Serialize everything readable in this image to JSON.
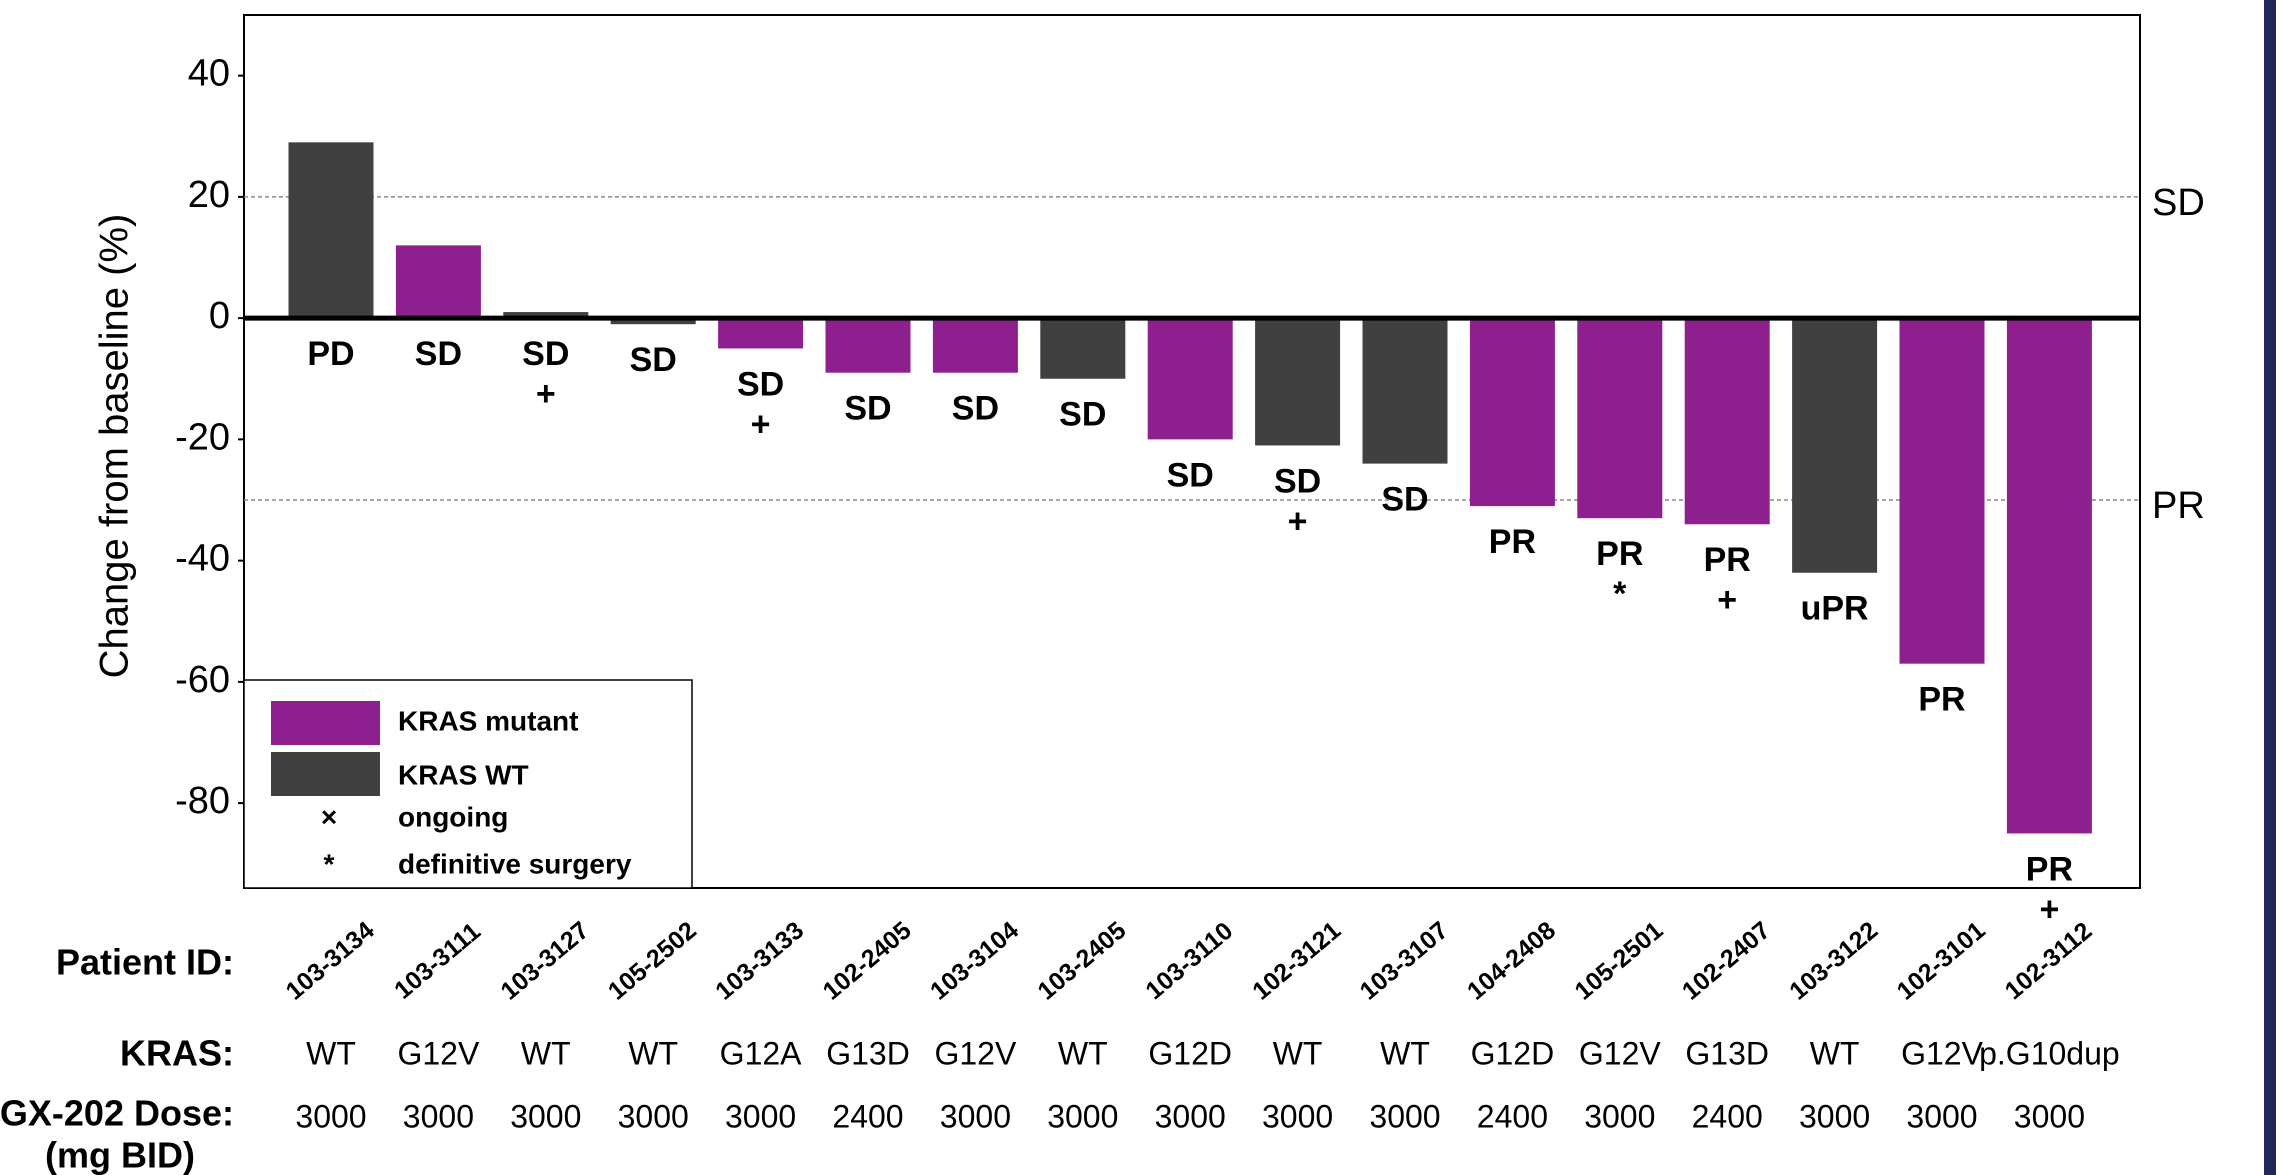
{
  "chart_data": {
    "type": "bar",
    "ylabel": "Change from baseline (%)",
    "categories": [
      "103-3134",
      "103-3111",
      "103-3127",
      "105-2502",
      "103-3133",
      "102-2405",
      "103-3104",
      "103-2405",
      "103-3110",
      "102-3121",
      "103-3107",
      "104-2408",
      "105-2501",
      "102-2407",
      "103-3122",
      "102-3101",
      "102-3112"
    ],
    "series": [
      {
        "name": "KRAS mutant",
        "color": "#8e1f8e",
        "values": [
          null,
          12,
          null,
          null,
          -5,
          -9,
          -9,
          null,
          -20,
          null,
          null,
          -31,
          -33,
          -34,
          null,
          -57,
          -85
        ]
      },
      {
        "name": "KRAS WT",
        "color": "#404040",
        "values": [
          29,
          null,
          1,
          -1,
          null,
          null,
          null,
          -10,
          null,
          -21,
          -24,
          null,
          null,
          null,
          -42,
          null,
          null
        ]
      }
    ],
    "responses": [
      "PD",
      "SD",
      "SD",
      "SD",
      "SD",
      "SD",
      "SD",
      "SD",
      "SD",
      "SD",
      "SD",
      "PR",
      "PR",
      "PR",
      "uPR",
      "PR",
      "PR"
    ],
    "response_markers": [
      null,
      null,
      "+",
      null,
      "+",
      null,
      null,
      null,
      null,
      "+",
      null,
      null,
      "*",
      "+",
      null,
      null,
      "+"
    ],
    "legend_notes": [
      {
        "symbol": "×",
        "label": "ongoing"
      },
      {
        "symbol": "*",
        "label": "definitive surgery"
      }
    ],
    "reference_lines": [
      {
        "value": 20,
        "label": "SD"
      },
      {
        "value": -30,
        "label": "PR"
      }
    ],
    "row_labels": {
      "patient": "Patient ID:",
      "kras": "KRAS:",
      "dose": "GX-202 Dose:",
      "dose_unit": "(mg BID)"
    },
    "kras": [
      "WT",
      "G12V",
      "WT",
      "WT",
      "G12A",
      "G13D",
      "G12V",
      "WT",
      "G12D",
      "WT",
      "WT",
      "G12D",
      "G12V",
      "G13D",
      "WT",
      "G12V",
      "p.G10dup"
    ],
    "dose": [
      3000,
      3000,
      3000,
      3000,
      3000,
      2400,
      3000,
      3000,
      3000,
      3000,
      3000,
      2400,
      3000,
      2400,
      3000,
      3000,
      3000
    ],
    "ylim": [
      -94,
      50
    ],
    "yticks": [
      40,
      20,
      0,
      -20,
      -40,
      -60,
      -80
    ],
    "legend": "lower left"
  }
}
